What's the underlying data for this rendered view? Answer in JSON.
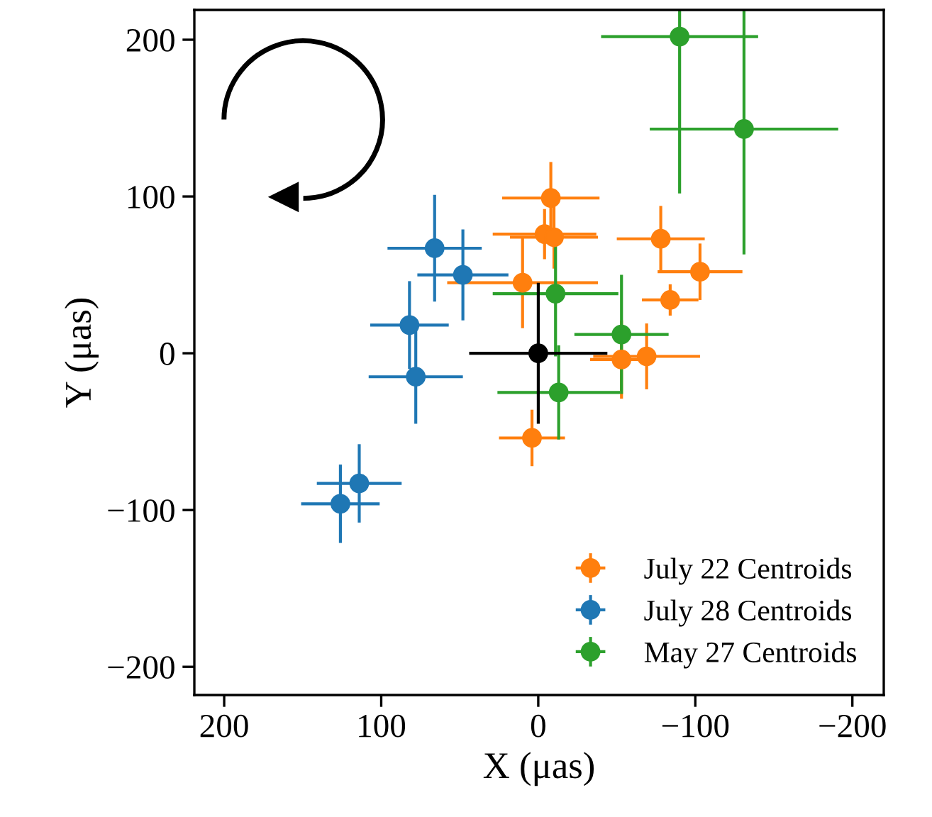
{
  "chart_data": {
    "type": "scatter",
    "xlabel": "X (μas)",
    "ylabel": "Y (μas)",
    "xlim": [
      219,
      -220
    ],
    "ylim": [
      -218,
      219
    ],
    "xticks": [
      200,
      100,
      0,
      {
        "value": -100,
        "label": "−100"
      },
      {
        "value": -200,
        "label": "−200"
      }
    ],
    "yticks": [
      {
        "value": -200,
        "label": "−200"
      },
      {
        "value": -100,
        "label": "−100"
      },
      0,
      100,
      200
    ],
    "marker": "circle",
    "grid": false,
    "legend": "bottom right",
    "series": [
      {
        "name": "July 22 Centroids",
        "color": "#ff7f0e",
        "x": [
          -8,
          -4,
          -10,
          10,
          -78,
          -103,
          -84,
          -53,
          -69,
          4
        ],
        "values": [
          99,
          76,
          74,
          45,
          73,
          52,
          34,
          -4,
          -2,
          -54
        ],
        "xerrors": [
          31,
          33,
          28,
          48,
          28,
          27,
          18,
          20,
          34,
          21
        ],
        "errors": [
          23,
          16,
          20,
          29,
          21,
          18,
          10,
          25,
          21,
          18
        ]
      },
      {
        "name": "July 28 Centroids",
        "color": "#1f77b4",
        "x": [
          66,
          48,
          82,
          78,
          114,
          126
        ],
        "values": [
          67,
          50,
          18,
          -15,
          -83,
          -96
        ],
        "xerrors": [
          30,
          29,
          25,
          30,
          27,
          25
        ],
        "errors": [
          34,
          29,
          28,
          30,
          25,
          25
        ]
      },
      {
        "name": "May 27 Centroids",
        "color": "#2ca02c",
        "x": [
          -90,
          -131,
          -11,
          -53,
          -13
        ],
        "values": [
          202,
          143,
          38,
          12,
          -25
        ],
        "xerrors": [
          50,
          60,
          40,
          30,
          39
        ],
        "errors": [
          [
            102,
            219
          ],
          80,
          40,
          38,
          30
        ]
      },
      {
        "color": "#000000",
        "x": [
          0
        ],
        "values": [
          0
        ],
        "xerrors": [
          44
        ],
        "errors": [
          45
        ]
      }
    ]
  }
}
